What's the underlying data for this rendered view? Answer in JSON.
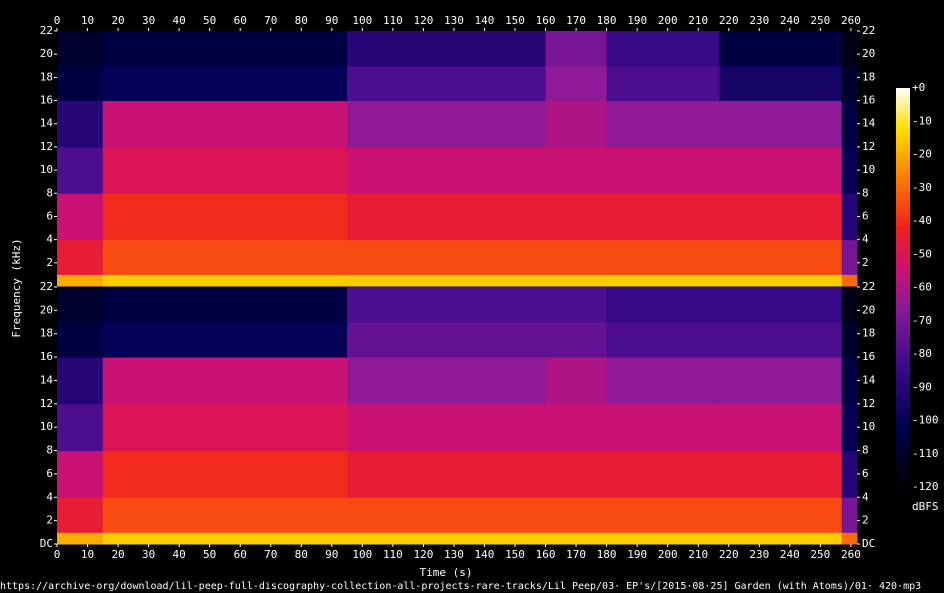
{
  "chart_data": {
    "type": "spectrogram",
    "xlabel": "Time (s)",
    "ylabel": "Frequency (kHz)",
    "xlim": [
      0,
      262
    ],
    "xticks": [
      0,
      10,
      20,
      30,
      40,
      50,
      60,
      70,
      80,
      90,
      100,
      110,
      120,
      130,
      140,
      150,
      160,
      170,
      180,
      190,
      200,
      210,
      220,
      230,
      240,
      250,
      260
    ],
    "channels": [
      {
        "ylim": [
          0,
          22
        ],
        "yticks": [
          2,
          4,
          6,
          8,
          10,
          12,
          14,
          16,
          18,
          20,
          22
        ],
        "time_edges": [
          0,
          15,
          95,
          160,
          180,
          217,
          257,
          262
        ],
        "freq_edges": [
          0,
          1,
          4,
          8,
          12,
          16,
          19,
          22
        ],
        "z": [
          [
            -20,
            -45,
            -55,
            -80,
            -90,
            -105,
            -110
          ],
          [
            -15,
            -35,
            -40,
            -50,
            -55,
            -100,
            -105
          ],
          [
            -15,
            -35,
            -45,
            -55,
            -65,
            -80,
            -90
          ],
          [
            -15,
            -35,
            -45,
            -55,
            -60,
            -65,
            -70
          ],
          [
            -15,
            -35,
            -45,
            -55,
            -65,
            -80,
            -85
          ],
          [
            -15,
            -35,
            -45,
            -55,
            -65,
            -95,
            -105
          ],
          [
            -30,
            -70,
            -90,
            -100,
            -105,
            -110,
            -115
          ]
        ]
      },
      {
        "ylim": [
          0,
          22
        ],
        "yticks": [
          {
            "value": 0,
            "label": "DC"
          },
          2,
          4,
          6,
          8,
          10,
          12,
          14,
          16,
          18,
          20,
          22
        ],
        "time_edges": [
          0,
          15,
          95,
          160,
          180,
          217,
          257,
          262
        ],
        "freq_edges": [
          0,
          1,
          4,
          8,
          12,
          16,
          19,
          22
        ],
        "z": [
          [
            -20,
            -45,
            -55,
            -80,
            -90,
            -105,
            -110
          ],
          [
            -15,
            -35,
            -40,
            -50,
            -55,
            -100,
            -105
          ],
          [
            -15,
            -35,
            -45,
            -55,
            -65,
            -75,
            -80
          ],
          [
            -15,
            -35,
            -45,
            -55,
            -60,
            -75,
            -80
          ],
          [
            -15,
            -35,
            -45,
            -55,
            -65,
            -80,
            -85
          ],
          [
            -15,
            -35,
            -45,
            -55,
            -65,
            -80,
            -85
          ],
          [
            -30,
            -70,
            -90,
            -100,
            -105,
            -110,
            -115
          ]
        ]
      }
    ],
    "colorbar": {
      "zlim": [
        -120,
        0
      ],
      "ticks": [
        {
          "value": 0,
          "label": "+0"
        },
        -10,
        -20,
        -30,
        -40,
        -50,
        -60,
        -70,
        -80,
        -90,
        -100,
        -110,
        -120
      ],
      "label": "dBFS"
    },
    "footer": "https://archive·org/download/lil-peep-full-discography-collection-all-projects-rare-tracks/Lil Peep/03· EP's/[2015·08·25] Garden (with Atoms)/01· 420·mp3"
  }
}
